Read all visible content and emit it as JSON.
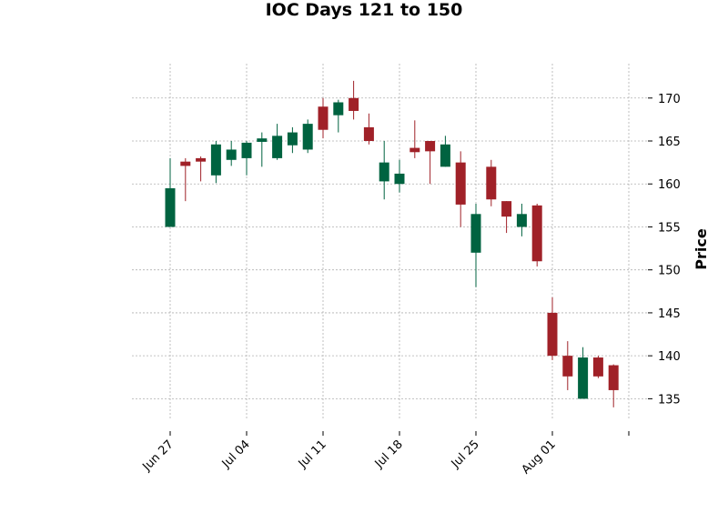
{
  "chart_data": {
    "type": "candlestick",
    "title": "IOC Days 121 to 150",
    "ylabel": "Price",
    "xlabel": "",
    "ylim": [
      132.5,
      174
    ],
    "yticks": [
      135,
      140,
      145,
      150,
      155,
      160,
      165,
      170
    ],
    "grid": true,
    "y_axis_side": "right",
    "colors": {
      "up": "#006340",
      "down": "#A02128",
      "grid": "#b0b0b0"
    },
    "xtick_labels": [
      {
        "label": "Jun 27",
        "index": 0
      },
      {
        "label": "Jul 04",
        "index": 5
      },
      {
        "label": "Jul 11",
        "index": 10
      },
      {
        "label": "Jul 18",
        "index": 15
      },
      {
        "label": "Jul 25",
        "index": 20
      },
      {
        "label": "Aug 01",
        "index": 25
      },
      {
        "label": "",
        "index": 30
      }
    ],
    "candles": [
      {
        "open": 155.0,
        "high": 163.0,
        "low": 155.0,
        "close": 159.5
      },
      {
        "open": 162.6,
        "high": 163.0,
        "low": 158.0,
        "close": 162.1
      },
      {
        "open": 163.0,
        "high": 163.2,
        "low": 160.3,
        "close": 162.6
      },
      {
        "open": 161.0,
        "high": 165.0,
        "low": 160.1,
        "close": 164.6
      },
      {
        "open": 162.8,
        "high": 165.0,
        "low": 162.1,
        "close": 164.0
      },
      {
        "open": 163.0,
        "high": 165.0,
        "low": 161.0,
        "close": 164.8
      },
      {
        "open": 164.9,
        "high": 166.0,
        "low": 162.0,
        "close": 165.3
      },
      {
        "open": 163.0,
        "high": 167.0,
        "low": 162.8,
        "close": 165.6
      },
      {
        "open": 164.5,
        "high": 166.6,
        "low": 163.6,
        "close": 166.0
      },
      {
        "open": 164.0,
        "high": 167.5,
        "low": 163.6,
        "close": 167.0
      },
      {
        "open": 169.0,
        "high": 170.0,
        "low": 165.3,
        "close": 166.3
      },
      {
        "open": 168.0,
        "high": 169.8,
        "low": 166.0,
        "close": 169.5
      },
      {
        "open": 170.0,
        "high": 172.0,
        "low": 167.5,
        "close": 168.5
      },
      {
        "open": 166.6,
        "high": 168.2,
        "low": 164.6,
        "close": 165.0
      },
      {
        "open": 160.3,
        "high": 165.0,
        "low": 158.2,
        "close": 162.5
      },
      {
        "open": 160.0,
        "high": 162.8,
        "low": 159.0,
        "close": 161.2
      },
      {
        "open": 164.2,
        "high": 167.4,
        "low": 163.0,
        "close": 163.7
      },
      {
        "open": 165.0,
        "high": 165.0,
        "low": 160.0,
        "close": 163.8
      },
      {
        "open": 162.0,
        "high": 165.6,
        "low": 162.0,
        "close": 164.6
      },
      {
        "open": 162.5,
        "high": 163.8,
        "low": 155.0,
        "close": 157.6
      },
      {
        "open": 152.0,
        "high": 157.7,
        "low": 148.0,
        "close": 156.5
      },
      {
        "open": 162.0,
        "high": 162.8,
        "low": 157.4,
        "close": 158.2
      },
      {
        "open": 158.0,
        "high": 158.0,
        "low": 154.3,
        "close": 156.2
      },
      {
        "open": 155.0,
        "high": 157.7,
        "low": 153.9,
        "close": 156.5
      },
      {
        "open": 157.5,
        "high": 157.7,
        "low": 150.4,
        "close": 151.0
      },
      {
        "open": 145.0,
        "high": 146.8,
        "low": 139.5,
        "close": 140.0
      },
      {
        "open": 140.0,
        "high": 141.7,
        "low": 136.0,
        "close": 137.6
      },
      {
        "open": 135.0,
        "high": 141.0,
        "low": 135.0,
        "close": 139.8
      },
      {
        "open": 139.8,
        "high": 140.0,
        "low": 137.4,
        "close": 137.6
      },
      {
        "open": 138.9,
        "high": 139.0,
        "low": 134.0,
        "close": 136.0
      }
    ]
  }
}
